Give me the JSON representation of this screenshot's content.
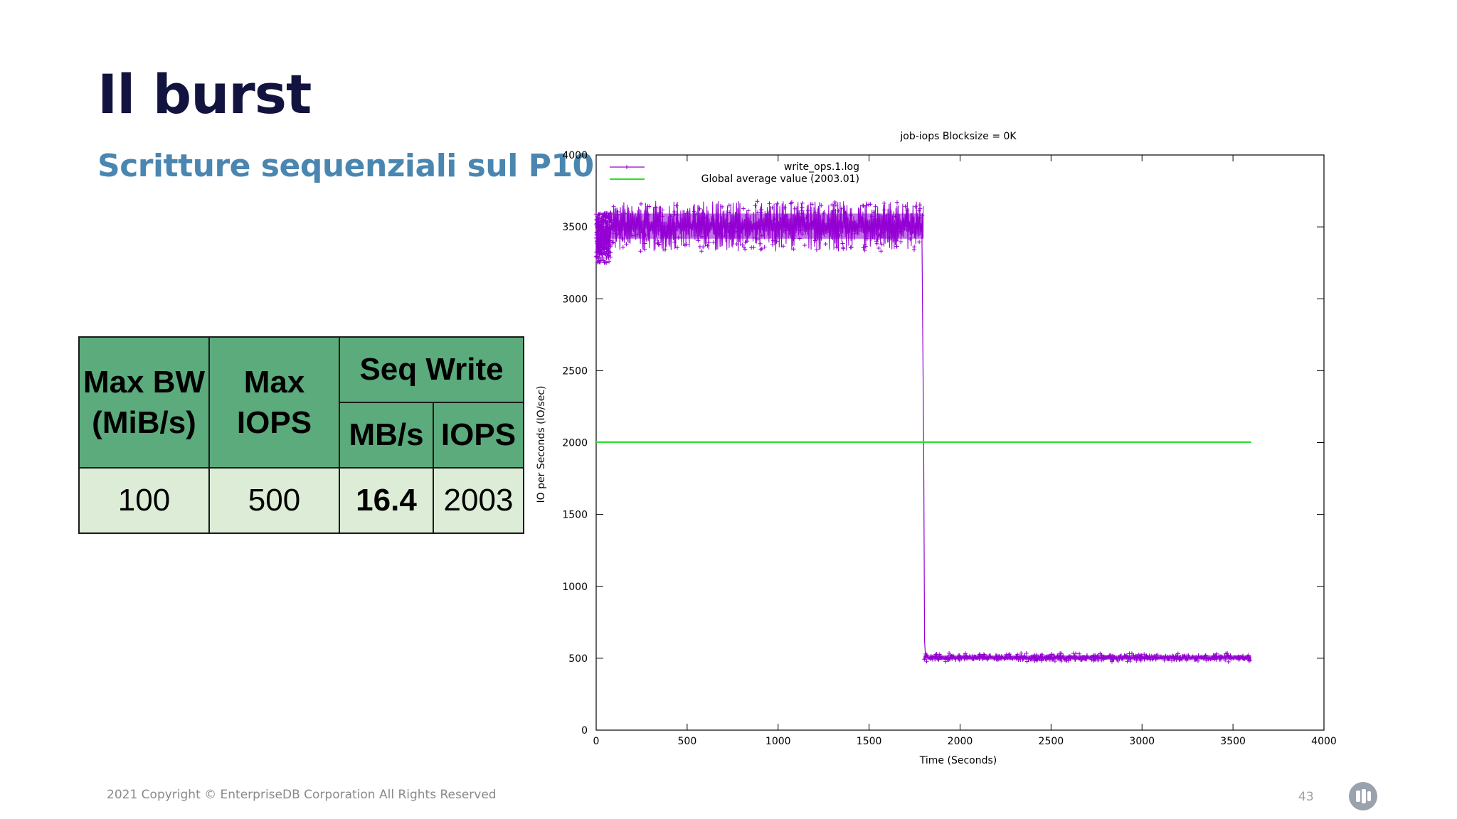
{
  "slide": {
    "title": "Il burst",
    "subtitle": "Scritture sequenziali sul P10",
    "footer": "2021 Copyright © EnterpriseDB Corporation All Rights Reserved",
    "page_number": "43",
    "logo_icon": "edb-logo-icon"
  },
  "table": {
    "max_bw_line1": "Max BW",
    "max_bw_line2": "(MiB/s)",
    "max_iops_line1": "Max",
    "max_iops_line2": "IOPS",
    "seq_write": "Seq Write",
    "mbs": "MB/s",
    "iops": "IOPS",
    "values": {
      "max_bw": "100",
      "max_iops": "500",
      "mbs": "16.4",
      "iops": "2003"
    },
    "colors": {
      "header": "#5bab7c",
      "cell": "#dcecd6"
    }
  },
  "chart_data": {
    "type": "line",
    "title": "job-iops  Blocksize = 0K",
    "xlabel": "Time (Seconds)",
    "ylabel": "IO per Seconds (IO/sec)",
    "xlim": [
      0,
      4000
    ],
    "ylim": [
      0,
      4000
    ],
    "xticks": [
      "0",
      "500",
      "1000",
      "1500",
      "2000",
      "2500",
      "3000",
      "3500",
      "4000"
    ],
    "yticks": [
      "0",
      "500",
      "1000",
      "1500",
      "2000",
      "2500",
      "3000",
      "3500",
      "4000"
    ],
    "grid": false,
    "legend_position": "top-left",
    "series": [
      {
        "name": "write_ops.1.log",
        "color": "#9400d3",
        "x": [
          0,
          20,
          60,
          100,
          200,
          400,
          600,
          800,
          1000,
          1200,
          1400,
          1600,
          1790,
          1800,
          1805,
          1810,
          1830,
          2000,
          2500,
          3000,
          3500,
          3600
        ],
        "y": [
          3400,
          3300,
          3450,
          3500,
          3520,
          3500,
          3510,
          3500,
          3520,
          3510,
          3500,
          3510,
          3500,
          2000,
          620,
          510,
          500,
          500,
          500,
          500,
          500,
          500
        ],
        "band_high": [
          {
            "x0": 0,
            "x1": 80,
            "min": 3250,
            "max": 3600
          },
          {
            "x0": 80,
            "x1": 1800,
            "min": 3330,
            "max": 3680
          }
        ],
        "band_low": [
          {
            "x0": 1800,
            "x1": 3600,
            "min": 475,
            "max": 535
          }
        ]
      },
      {
        "name": "Global average value (2003.01)",
        "color": "#33dd33",
        "x": [
          0,
          3600
        ],
        "y": [
          2003.01,
          2003.01
        ]
      }
    ]
  }
}
